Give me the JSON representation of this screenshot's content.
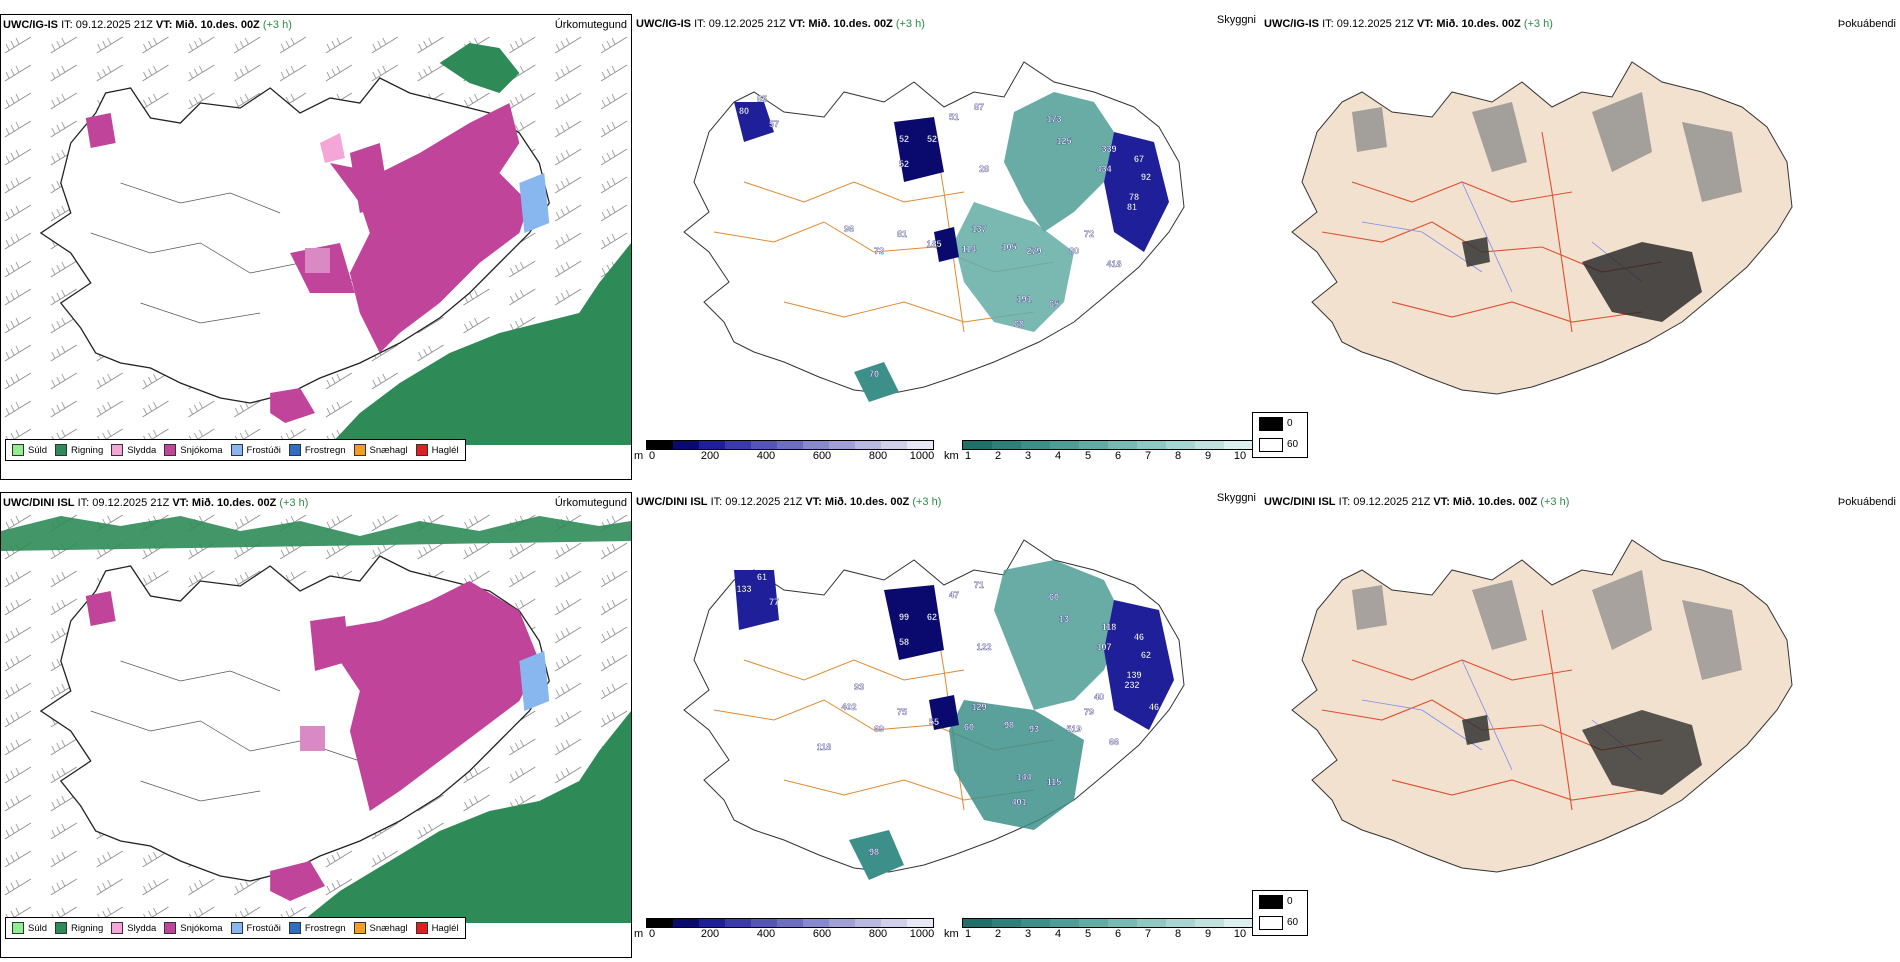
{
  "rows": [
    {
      "model": "UWC/IG-IS",
      "issue": "IT: 09.12.2025 21Z",
      "valid": "VT: Mið. 10.des. 00Z",
      "lead": "(+3 h)",
      "precip_labels": [],
      "vis_labels": [
        "80",
        "85",
        "57",
        "52",
        "52",
        "52",
        "51",
        "87",
        "173",
        "125",
        "339",
        "434",
        "67",
        "92",
        "78",
        "28",
        "81",
        "137",
        "114",
        "185",
        "105",
        "279",
        "80",
        "72",
        "418",
        "191",
        "65",
        "68",
        "96",
        "72",
        "81",
        "70"
      ]
    },
    {
      "model": "UWC/DINI ISL",
      "issue": "IT: 09.12.2025 21Z",
      "valid": "VT: Mið. 10.des. 00Z",
      "lead": "(+3 h)",
      "vis_labels": [
        "133",
        "61",
        "77",
        "99",
        "58",
        "62",
        "47",
        "71",
        "60",
        "13",
        "118",
        "107",
        "46",
        "62",
        "139",
        "122",
        "232",
        "129",
        "60",
        "55",
        "98",
        "93",
        "519",
        "79",
        "66",
        "144",
        "115",
        "401",
        "402",
        "69",
        "75",
        "98",
        "118",
        "93",
        "40",
        "46"
      ]
    }
  ],
  "panel_titles": {
    "precip": "Úrkomutegund",
    "cloud": "Skyggni",
    "fog": "Þokuábendi"
  },
  "precip_legend": [
    {
      "label": "Súld",
      "color": "#90ee90"
    },
    {
      "label": "Rigning",
      "color": "#2e8b57"
    },
    {
      "label": "Slydda",
      "color": "#f4a6d7"
    },
    {
      "label": "Snjókoma",
      "color": "#c0449a"
    },
    {
      "label": "Frostúði",
      "color": "#87b7ee"
    },
    {
      "label": "Frostregn",
      "color": "#2f6fc0"
    },
    {
      "label": "Snæhagl",
      "color": "#f0a020"
    },
    {
      "label": "Haglél",
      "color": "#e02020"
    }
  ],
  "cloudbase_scale": {
    "unit": "m",
    "ticks": [
      "0",
      "200",
      "400",
      "600",
      "800",
      "1000"
    ],
    "colors": [
      "#000000",
      "#0a0a6e",
      "#1f1f99",
      "#3a3aaa",
      "#5555b5",
      "#6e6ec0",
      "#8888cc",
      "#a0a0d6",
      "#b8b8e0",
      "#d0d0ea",
      "#e8e8f5"
    ]
  },
  "visibility_scale": {
    "unit": "km",
    "ticks": [
      "1",
      "2",
      "3",
      "4",
      "5",
      "6",
      "7",
      "8",
      "9",
      "10"
    ],
    "colors": [
      "#1e7068",
      "#2d807a",
      "#3d8f89",
      "#4f9d97",
      "#63aba5",
      "#78b9b3",
      "#8fc7c2",
      "#a7d5d1",
      "#c0e2df",
      "#dbf0ee"
    ]
  },
  "fog_scale": {
    "labels": [
      "0",
      "60"
    ],
    "colors": [
      "#000000",
      "#ffffff"
    ]
  }
}
